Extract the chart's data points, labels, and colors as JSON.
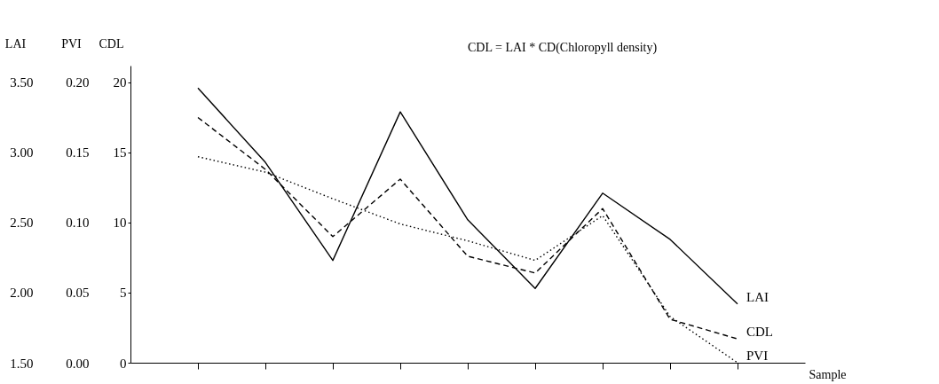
{
  "chart_data": {
    "type": "line",
    "xlabel": "Sample",
    "ylabel": "CDL",
    "y2label": "PVI",
    "y3label": "LAI",
    "annotations": [
      "CDL = LAI * CD(Chloropyll density)"
    ],
    "categories": [
      null,
      null,
      null,
      null,
      null,
      null,
      null,
      null,
      null
    ],
    "ylim": [
      0,
      21.2
    ],
    "yticks": [
      0,
      5,
      10,
      15,
      20
    ],
    "y2lim": [
      0,
      0.212
    ],
    "y2ticks": [
      {
        "value": 0,
        "label": "0.00"
      },
      {
        "value": 0.05,
        "label": "0.05"
      },
      {
        "value": 0.1,
        "label": "0.10"
      },
      {
        "value": 0.15,
        "label": "0.15"
      },
      {
        "value": 0.2,
        "label": "0.20"
      }
    ],
    "y3lim": [
      1.5,
      3.62
    ],
    "y3ticks": [
      {
        "value": 1.5,
        "label": "1.50"
      },
      {
        "value": 2.0,
        "label": "2.00"
      },
      {
        "value": 2.5,
        "label": "2.50"
      },
      {
        "value": 3.0,
        "label": "3.00"
      },
      {
        "value": 3.5,
        "label": "3.50"
      }
    ],
    "grid": false,
    "legend": false,
    "marker": "none",
    "series": [
      {
        "name": "LAI",
        "color": "#000000",
        "line_style": "solid",
        "axis": "y3",
        "values": [
          3.46,
          2.93,
          2.23,
          3.29,
          2.52,
          2.03,
          2.71,
          2.38,
          1.92
        ]
      },
      {
        "name": "CDL",
        "color": "#000000",
        "line_style": "dashed",
        "axis": "y",
        "values": [
          17.5,
          13.8,
          9.0,
          13.1,
          7.6,
          6.4,
          11.0,
          3.1,
          1.7
        ]
      },
      {
        "name": "PVI",
        "color": "#000000",
        "line_style": "dotted",
        "axis": "y2",
        "values": [
          0.147,
          0.136,
          0.117,
          0.099,
          0.087,
          0.073,
          0.105,
          0.033,
          0.0
        ]
      }
    ]
  }
}
